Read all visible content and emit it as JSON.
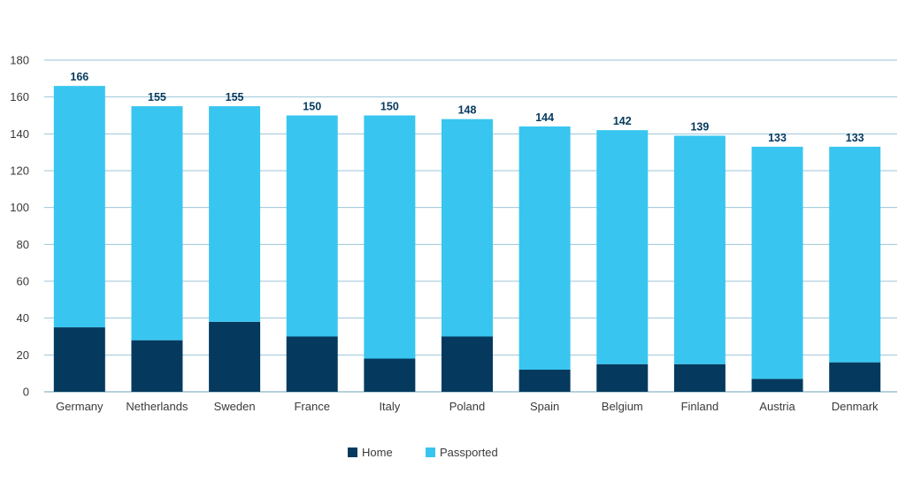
{
  "chart_data": {
    "type": "bar",
    "stacked": true,
    "title": "",
    "xlabel": "",
    "ylabel": "",
    "ylim": [
      0,
      180
    ],
    "yticks": [
      0,
      20,
      40,
      60,
      80,
      100,
      120,
      140,
      160,
      180
    ],
    "grid": true,
    "legend_position": "bottom-center",
    "categories": [
      "Germany",
      "Netherlands",
      "Sweden",
      "France",
      "Italy",
      "Poland",
      "Spain",
      "Belgium",
      "Finland",
      "Austria",
      "Denmark"
    ],
    "series": [
      {
        "name": "Home",
        "color": "#053a5e",
        "values": [
          35,
          28,
          38,
          30,
          18,
          30,
          12,
          15,
          15,
          7,
          16
        ]
      },
      {
        "name": "Passported",
        "color": "#38c6f0",
        "values": [
          131,
          127,
          117,
          120,
          132,
          118,
          132,
          127,
          124,
          126,
          117
        ]
      }
    ],
    "totals": [
      "166",
      "155",
      "155",
      "150",
      "150",
      "148",
      "144",
      "142",
      "139",
      "133",
      "133"
    ],
    "colors": {
      "grid": "#9cc5d8",
      "axis": "#6fa0b8",
      "total_label": "#053a5e"
    }
  }
}
